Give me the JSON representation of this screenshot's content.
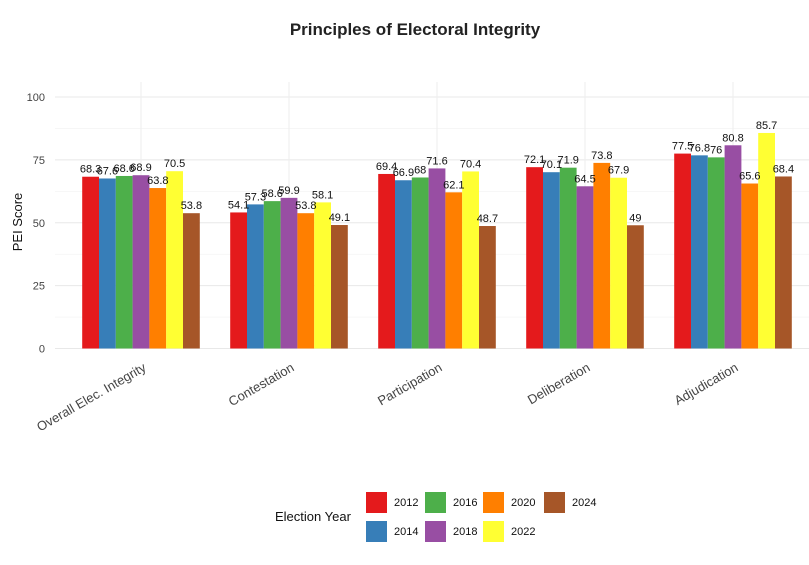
{
  "chart_data": {
    "type": "bar",
    "title": "Principles of Electoral Integrity",
    "xlabel": "",
    "ylabel": "PEI Score",
    "ylim": [
      0,
      105
    ],
    "yticks": [
      0,
      25,
      50,
      75,
      100
    ],
    "grid": true,
    "legend_title": "Election Year",
    "legend_position": "bottom",
    "categories": [
      "Overall Elec. Integrity",
      "Contestation",
      "Participation",
      "Deliberation",
      "Adjudication"
    ],
    "series": [
      {
        "name": "2012",
        "color": "#e41a1c",
        "values": [
          68.3,
          54.1,
          69.4,
          72.1,
          77.5
        ]
      },
      {
        "name": "2014",
        "color": "#377eb8",
        "values": [
          67.6,
          57.3,
          66.9,
          70.1,
          76.8
        ]
      },
      {
        "name": "2016",
        "color": "#4daf4a",
        "values": [
          68.6,
          58.6,
          68,
          71.9,
          76
        ]
      },
      {
        "name": "2018",
        "color": "#984ea3",
        "values": [
          68.9,
          59.9,
          71.6,
          64.5,
          80.8
        ]
      },
      {
        "name": "2020",
        "color": "#ff7f00",
        "values": [
          63.8,
          53.8,
          62.1,
          73.8,
          65.6
        ]
      },
      {
        "name": "2022",
        "color": "#ffff33",
        "values": [
          70.5,
          58.1,
          70.4,
          67.9,
          85.7
        ]
      },
      {
        "name": "2024",
        "color": "#a65628",
        "values": [
          53.8,
          49.1,
          48.7,
          49,
          68.4
        ]
      }
    ]
  }
}
